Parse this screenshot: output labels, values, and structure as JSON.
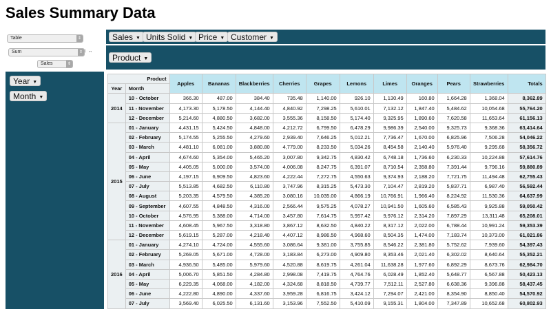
{
  "page_title": "Sales Summary Data",
  "controls": {
    "renderer": "Table",
    "aggregator": "Sum",
    "value_field": "Sales"
  },
  "col_attrs": [
    "Sales",
    "Units Solid",
    "Price",
    "Customer"
  ],
  "row_attrs_top": [
    "Product"
  ],
  "row_attrs_left": [
    "Year",
    "Month"
  ],
  "table": {
    "product_label": "Product",
    "year_label": "Year",
    "month_label": "Month",
    "columns": [
      "Apples",
      "Bananas",
      "Blackberries",
      "Cherries",
      "Grapes",
      "Lemons",
      "Limes",
      "Oranges",
      "Pears",
      "Strawberries",
      "Totals"
    ],
    "groups": [
      {
        "year": "2014",
        "rows": [
          {
            "month": "10 - October",
            "values": [
              "366.30",
              "487.00",
              "384.40",
              "735.48",
              "1,140.00",
              "926.10",
              "1,130.49",
              "160.80",
              "1,664.28",
              "1,368.04"
            ],
            "total": "8,362.89"
          },
          {
            "month": "11 - November",
            "values": [
              "4,173.30",
              "5,178.50",
              "4,144.40",
              "4,840.92",
              "7,298.25",
              "5,610.01",
              "7,132.12",
              "1,847.40",
              "5,484.62",
              "10,054.68"
            ],
            "total": "55,764.20"
          },
          {
            "month": "12 - December",
            "values": [
              "5,214.60",
              "4,880.50",
              "3,682.00",
              "3,555.36",
              "8,158.50",
              "5,174.40",
              "9,325.95",
              "1,890.60",
              "7,620.58",
              "11,653.64"
            ],
            "total": "61,156.13"
          }
        ]
      },
      {
        "year": "2015",
        "rows": [
          {
            "month": "01 - January",
            "values": [
              "4,431.15",
              "5,424.50",
              "4,848.00",
              "4,212.72",
              "6,799.50",
              "6,478.29",
              "9,986.39",
              "2,540.00",
              "9,325.73",
              "9,368.36"
            ],
            "total": "63,414.64"
          },
          {
            "month": "02 - February",
            "values": [
              "5,174.55",
              "5,255.50",
              "4,279.60",
              "2,939.40",
              "7,646.25",
              "5,012.21",
              "7,736.47",
              "1,670.00",
              "6,825.96",
              "7,506.28"
            ],
            "total": "54,046.22"
          },
          {
            "month": "03 - March",
            "values": [
              "4,481.10",
              "6,081.00",
              "3,880.80",
              "4,779.00",
              "8,233.50",
              "5,034.26",
              "8,454.58",
              "2,140.40",
              "5,976.40",
              "9,295.68"
            ],
            "total": "58,356.72"
          },
          {
            "month": "04 - April",
            "values": [
              "4,674.60",
              "5,354.00",
              "5,465.20",
              "3,007.80",
              "9,342.75",
              "4,830.42",
              "6,748.18",
              "1,736.60",
              "6,230.33",
              "10,224.88"
            ],
            "total": "57,614.76"
          },
          {
            "month": "05 - May",
            "values": [
              "4,405.05",
              "5,000.00",
              "3,574.00",
              "4,006.08",
              "8,247.75",
              "6,391.07",
              "8,710.54",
              "2,358.80",
              "7,391.44",
              "9,796.16"
            ],
            "total": "59,880.89"
          },
          {
            "month": "06 - June",
            "values": [
              "4,197.15",
              "6,909.50",
              "4,823.60",
              "4,222.44",
              "7,272.75",
              "4,550.63",
              "9,374.93",
              "2,188.20",
              "7,721.75",
              "11,494.48"
            ],
            "total": "62,755.43"
          },
          {
            "month": "07 - July",
            "values": [
              "5,513.85",
              "4,682.50",
              "6,110.80",
              "3,747.96",
              "8,315.25",
              "5,473.30",
              "7,104.47",
              "2,819.20",
              "5,837.71",
              "6,987.40"
            ],
            "total": "56,592.44"
          },
          {
            "month": "08 - August",
            "values": [
              "5,203.35",
              "4,579.50",
              "4,385.20",
              "3,080.16",
              "10,035.00",
              "4,866.19",
              "10,766.91",
              "1,966.40",
              "8,224.92",
              "11,530.36"
            ],
            "total": "64,637.99"
          },
          {
            "month": "09 - September",
            "values": [
              "4,607.55",
              "4,848.50",
              "4,316.00",
              "2,566.44",
              "9,575.25",
              "4,078.27",
              "10,941.50",
              "1,605.60",
              "6,585.43",
              "9,925.88"
            ],
            "total": "59,050.42"
          },
          {
            "month": "10 - October",
            "values": [
              "4,576.95",
              "5,388.00",
              "4,714.00",
              "3,457.80",
              "7,614.75",
              "5,957.42",
              "9,976.12",
              "2,314.20",
              "7,897.29",
              "13,311.48"
            ],
            "total": "65,208.01"
          },
          {
            "month": "11 - November",
            "values": [
              "4,608.45",
              "5,967.50",
              "3,318.80",
              "3,867.12",
              "8,632.50",
              "4,840.22",
              "8,317.12",
              "2,022.00",
              "6,788.44",
              "10,991.24"
            ],
            "total": "59,353.39"
          },
          {
            "month": "12 - December",
            "values": [
              "5,619.15",
              "5,287.00",
              "4,218.40",
              "4,407.12",
              "8,986.50",
              "4,968.60",
              "8,504.35",
              "1,474.00",
              "7,183.74",
              "10,373.00"
            ],
            "total": "61,021.86"
          }
        ]
      },
      {
        "year": "2016",
        "rows": [
          {
            "month": "01 - January",
            "values": [
              "4,274.10",
              "4,724.00",
              "4,555.60",
              "3,086.64",
              "9,381.00",
              "3,755.85",
              "8,546.22",
              "2,381.80",
              "5,752.62",
              "7,939.60"
            ],
            "total": "54,397.43"
          },
          {
            "month": "02 - February",
            "values": [
              "5,269.05",
              "5,671.00",
              "4,728.00",
              "3,183.84",
              "6,273.00",
              "4,909.80",
              "8,353.46",
              "2,021.40",
              "6,302.02",
              "8,640.64"
            ],
            "total": "55,352.21"
          },
          {
            "month": "03 - March",
            "values": [
              "4,936.50",
              "5,485.00",
              "5,979.60",
              "4,520.88",
              "8,619.75",
              "4,261.04",
              "11,638.28",
              "1,977.60",
              "6,892.29",
              "8,673.76"
            ],
            "total": "62,984.70"
          },
          {
            "month": "04 - April",
            "values": [
              "5,006.70",
              "5,851.50",
              "4,284.80",
              "2,998.08",
              "7,419.75",
              "4,764.76",
              "6,028.49",
              "1,852.40",
              "5,648.77",
              "6,567.88"
            ],
            "total": "50,423.13"
          },
          {
            "month": "05 - May",
            "values": [
              "6,229.35",
              "4,068.00",
              "4,182.00",
              "4,324.68",
              "8,818.50",
              "4,739.77",
              "7,512.11",
              "2,527.80",
              "6,638.36",
              "9,396.88"
            ],
            "total": "58,437.45"
          },
          {
            "month": "06 - June",
            "values": [
              "4,222.80",
              "4,890.00",
              "4,337.60",
              "3,959.28",
              "6,816.75",
              "3,424.12",
              "7,294.07",
              "2,421.00",
              "8,354.90",
              "8,850.40"
            ],
            "total": "54,570.92"
          },
          {
            "month": "07 - July",
            "values": [
              "3,569.40",
              "6,025.50",
              "6,131.60",
              "3,153.96",
              "7,552.50",
              "5,410.09",
              "9,155.31",
              "1,804.00",
              "7,347.89",
              "10,652.68"
            ],
            "total": "60,802.93"
          }
        ]
      }
    ]
  }
}
